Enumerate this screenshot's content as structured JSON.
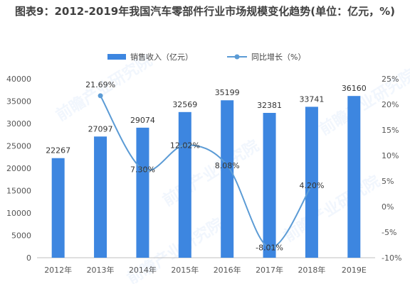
{
  "chart_data": {
    "type": "bar",
    "title": "图表9：2012-2019年我国汽车零部件行业市场规模变化趋势(单位：亿元，%)",
    "categories": [
      "2012年",
      "2013年",
      "2014年",
      "2015年",
      "2016年",
      "2017年",
      "2018年",
      "2019E"
    ],
    "series": [
      {
        "name": "销售收入（亿元）",
        "type": "bar",
        "axis": "left",
        "color": "#3d86e0",
        "values": [
          22267,
          27097,
          29074,
          32569,
          35199,
          32381,
          33741,
          36160
        ],
        "labels": [
          "22267",
          "27097",
          "29074",
          "32569",
          "35199",
          "32381",
          "33741",
          "36160"
        ]
      },
      {
        "name": "同比增长（%）",
        "type": "line",
        "axis": "right",
        "color": "#5b9bd5",
        "points": [
          {
            "category": "2013年",
            "value": 21.69,
            "label": "21.69%"
          },
          {
            "category": "2014年",
            "value": 7.3,
            "label": "7.30%"
          },
          {
            "category": "2015年",
            "value": 12.02,
            "label": "12.02%"
          },
          {
            "category": "2016年",
            "value": 8.08,
            "label": "8.08%"
          },
          {
            "category": "2017年",
            "value": -8.01,
            "label": "-8.01%"
          },
          {
            "category": "2018年",
            "value": 4.2,
            "label": "4.20%"
          }
        ]
      }
    ],
    "y_left": {
      "min": 0,
      "max": 40000,
      "ticks": [
        "0",
        "5000",
        "10000",
        "15000",
        "20000",
        "25000",
        "30000",
        "35000",
        "40000"
      ]
    },
    "y_right": {
      "min": -10,
      "max": 25,
      "ticks": [
        "-10%",
        "-5%",
        "0%",
        "5%",
        "10%",
        "15%",
        "20%",
        "25%"
      ]
    },
    "legend_position": "top-center",
    "grid": false,
    "watermark": "前瞻产业研究院"
  }
}
